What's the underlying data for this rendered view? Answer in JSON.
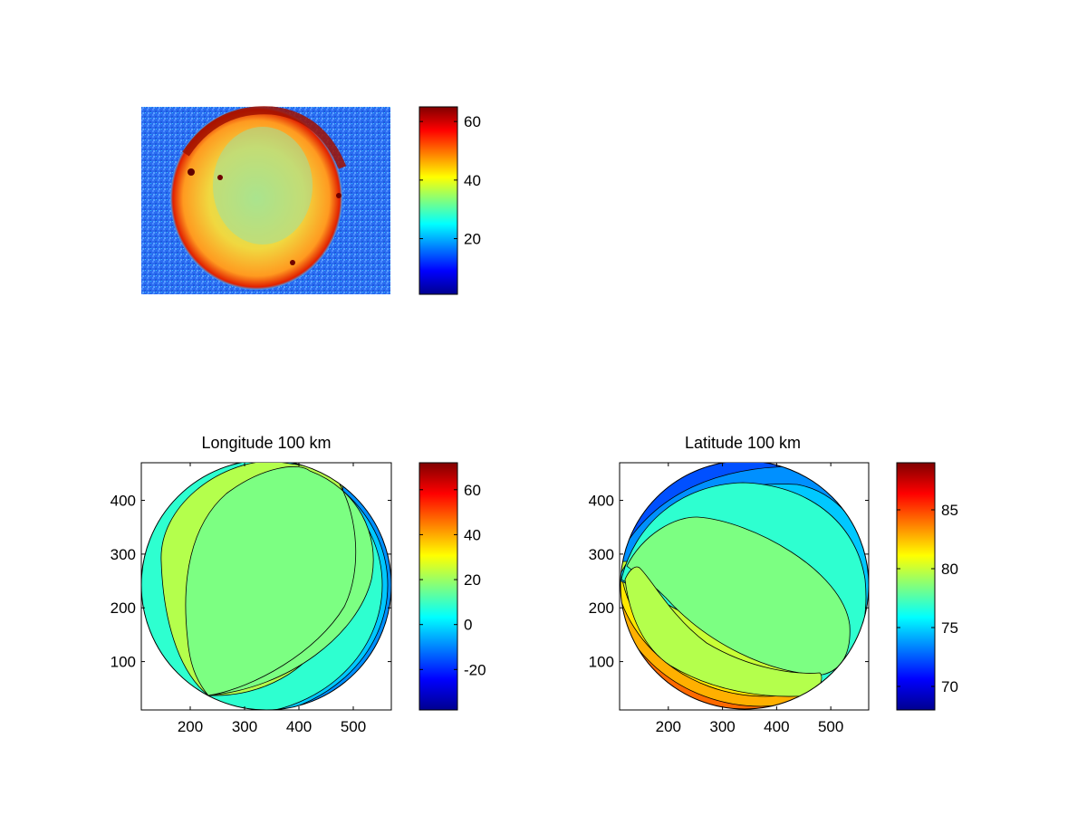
{
  "chart_data": [
    {
      "type": "heatmap",
      "title": "",
      "xlabel": "",
      "ylabel": "",
      "description_visible": "false-color image of a bright disk",
      "colorbar": {
        "range": [
          1,
          65
        ],
        "ticks": [
          {
            "value": 20,
            "label": "20"
          },
          {
            "value": 40,
            "label": "40"
          },
          {
            "value": 60,
            "label": "60"
          }
        ]
      }
    },
    {
      "type": "heatmap",
      "title": "Longitude 100 km",
      "xlabel": "",
      "ylabel": "",
      "xlim": [
        110,
        570
      ],
      "ylim": [
        10,
        470
      ],
      "x_ticks": [
        {
          "value": 200,
          "label": "200"
        },
        {
          "value": 300,
          "label": "300"
        },
        {
          "value": 400,
          "label": "400"
        },
        {
          "value": 500,
          "label": "500"
        }
      ],
      "y_ticks": [
        {
          "value": 100,
          "label": "100"
        },
        {
          "value": 200,
          "label": "200"
        },
        {
          "value": 300,
          "label": "300"
        },
        {
          "value": 400,
          "label": "400"
        }
      ],
      "colorbar": {
        "range": [
          -38,
          72
        ],
        "ticks": [
          {
            "value": -20,
            "label": "-20"
          },
          {
            "value": 0,
            "label": "0"
          },
          {
            "value": 20,
            "label": "20"
          },
          {
            "value": 40,
            "label": "40"
          },
          {
            "value": 60,
            "label": "60"
          }
        ]
      },
      "contour_levels": [
        10,
        15,
        20,
        25,
        30,
        35,
        40
      ],
      "fill_bands_value": [
        -10,
        -5,
        0,
        5,
        10,
        15,
        20,
        25,
        30,
        35,
        40
      ]
    },
    {
      "type": "heatmap",
      "title": "Latitude 100 km",
      "xlabel": "",
      "ylabel": "",
      "xlim": [
        110,
        570
      ],
      "ylim": [
        10,
        470
      ],
      "x_ticks": [
        {
          "value": 200,
          "label": "200"
        },
        {
          "value": 300,
          "label": "300"
        },
        {
          "value": 400,
          "label": "400"
        },
        {
          "value": 500,
          "label": "500"
        }
      ],
      "y_ticks": [
        {
          "value": 100,
          "label": "100"
        },
        {
          "value": 200,
          "label": "200"
        },
        {
          "value": 300,
          "label": "300"
        },
        {
          "value": 400,
          "label": "400"
        }
      ],
      "colorbar": {
        "range": [
          68,
          89
        ],
        "ticks": [
          {
            "value": 70,
            "label": "70"
          },
          {
            "value": 75,
            "label": "75"
          },
          {
            "value": 80,
            "label": "80"
          },
          {
            "value": 85,
            "label": "85"
          }
        ]
      },
      "fill_bands_value": [
        70,
        71,
        72,
        73,
        75,
        77,
        79,
        80,
        81,
        83,
        85
      ]
    }
  ],
  "colors": {
    "jet": [
      "#00008f",
      "#0000ff",
      "#00ffff",
      "#7fff7f",
      "#ffff00",
      "#ff0000",
      "#800000"
    ],
    "background": "#ffffff",
    "axis": "#000000"
  }
}
